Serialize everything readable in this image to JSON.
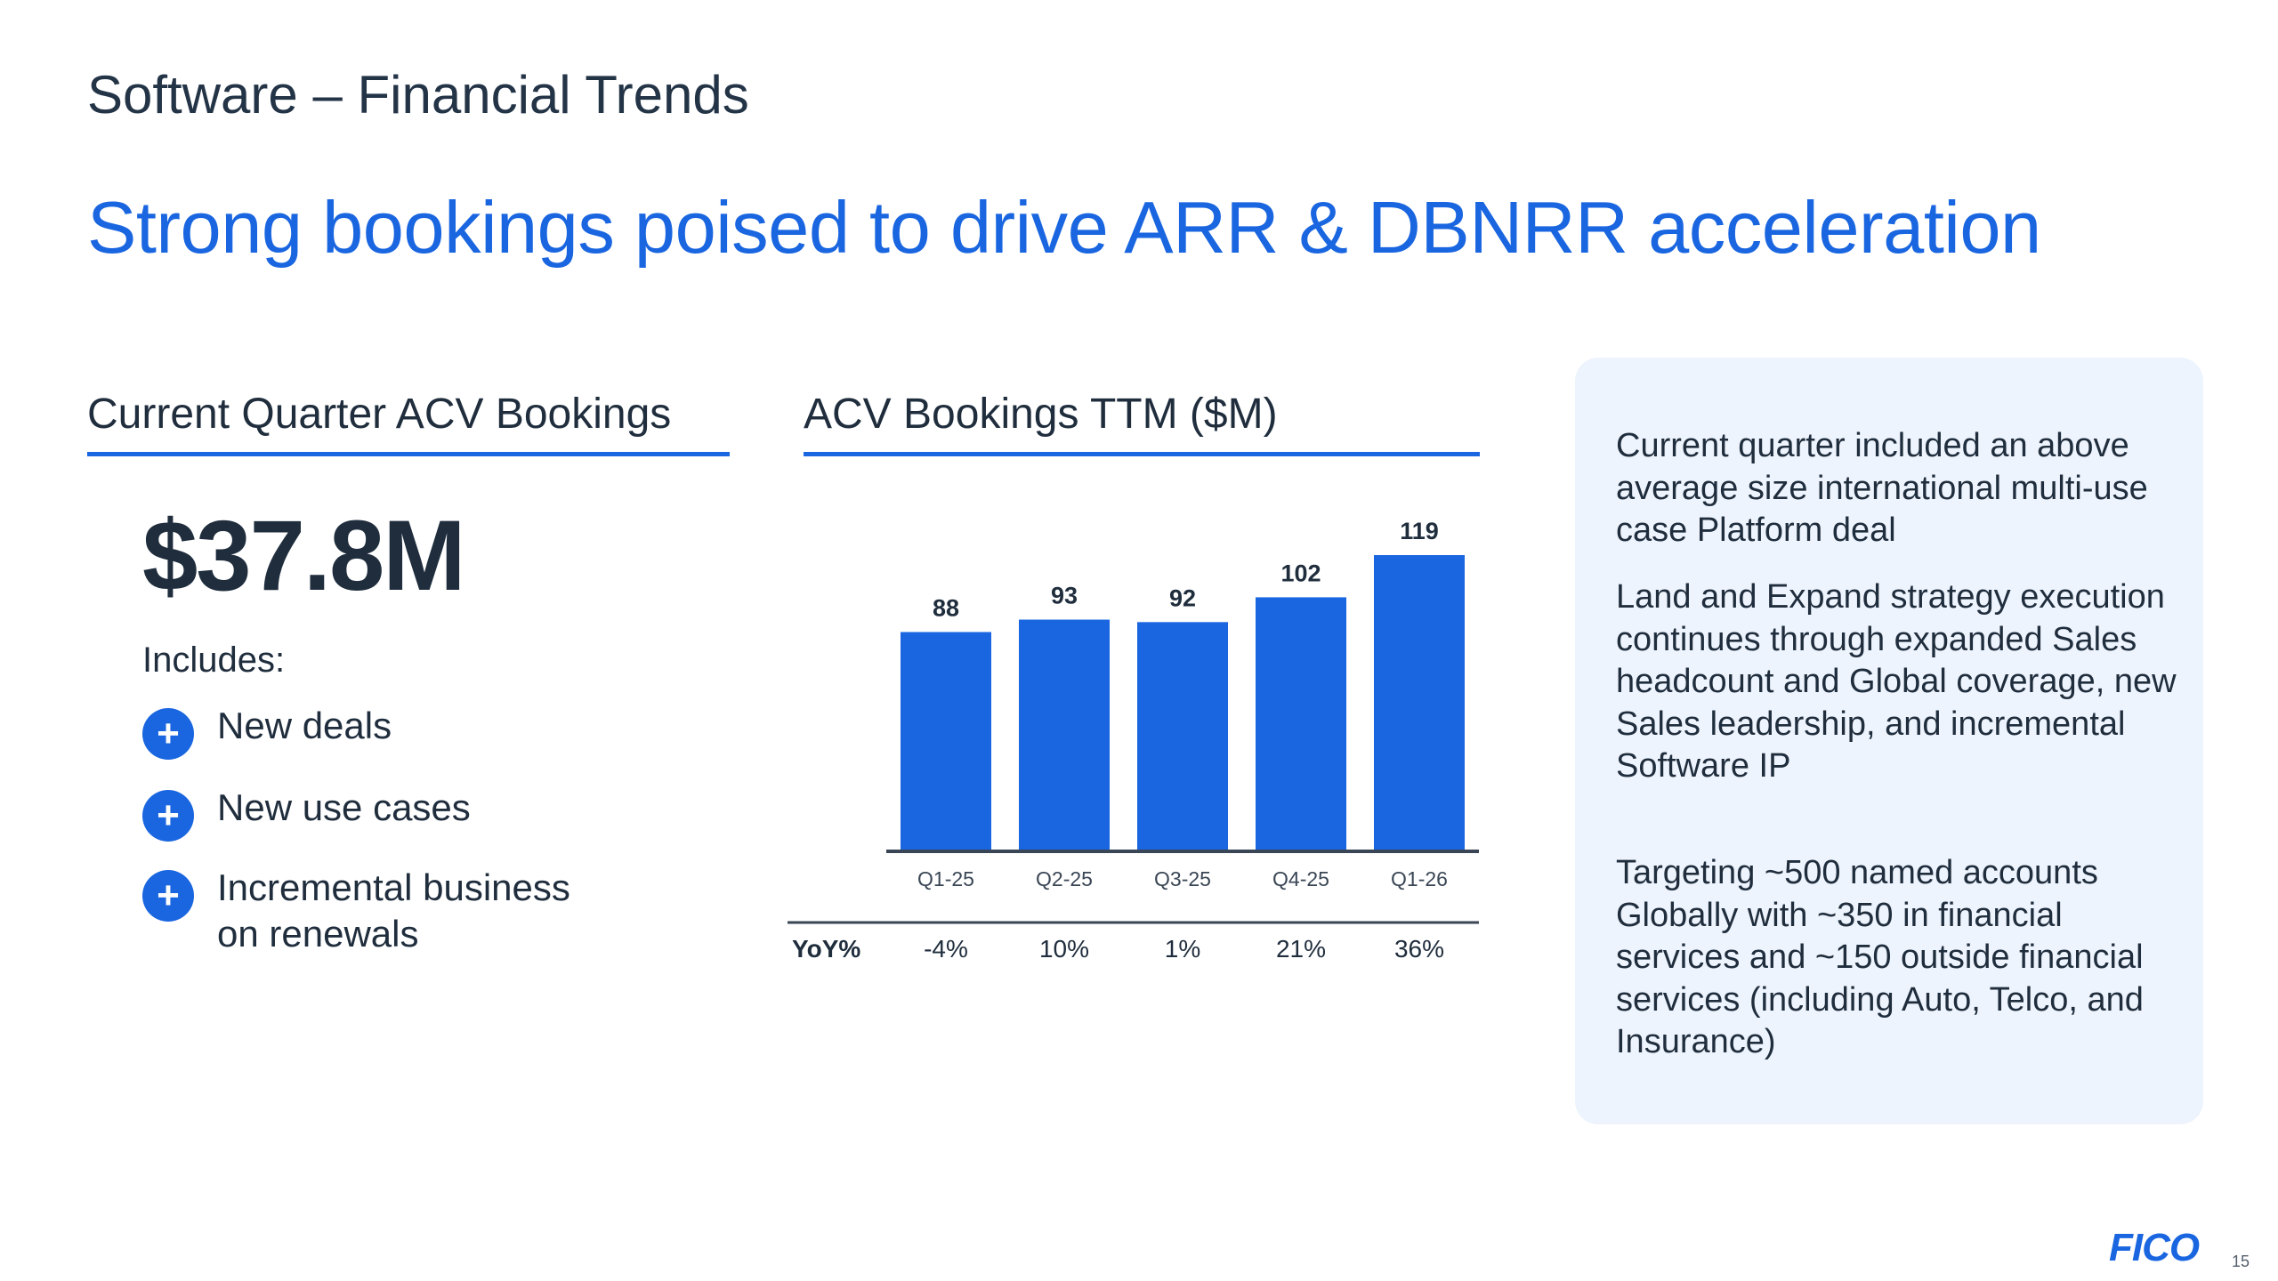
{
  "header": {
    "kicker": "Software – Financial Trends",
    "headline": "Strong bookings poised to drive ARR & DBNRR acceleration"
  },
  "left": {
    "section_title": "Current Quarter ACV Bookings",
    "value": "$37.8M",
    "includes_label": "Includes:",
    "items": [
      {
        "icon": "plus-icon",
        "text": "New deals"
      },
      {
        "icon": "plus-icon",
        "text": "New use cases"
      },
      {
        "icon": "plus-icon",
        "text": "Incremental business on renewals"
      }
    ]
  },
  "chart_data": {
    "type": "bar",
    "title": "ACV Bookings TTM ($M)",
    "categories": [
      "Q1-25",
      "Q2-25",
      "Q3-25",
      "Q4-25",
      "Q1-26"
    ],
    "values": [
      88,
      93,
      92,
      102,
      119
    ],
    "data_labels": [
      "88",
      "93",
      "92",
      "102",
      "119"
    ],
    "yoy_label": "YoY%",
    "yoy": [
      "-4%",
      "10%",
      "1%",
      "21%",
      "36%"
    ],
    "bar_color": "#1a66e0",
    "grid": false,
    "legend": "none"
  },
  "panel": {
    "paragraphs": [
      "Current quarter included an above average size international multi-use case Platform deal",
      "Land and Expand strategy execution continues through expanded Sales headcount and Global coverage, new Sales leadership, and incremental Software IP",
      "Targeting ~500 named accounts Globally with ~350 in financial services and ~150 outside financial services (including Auto, Telco, and Insurance)"
    ]
  },
  "footer": {
    "logo": "FICO",
    "page_number": "15"
  },
  "colors": {
    "accent": "#1a66e0",
    "text": "#1f2d3d",
    "panel_bg": "#eef4fd"
  }
}
